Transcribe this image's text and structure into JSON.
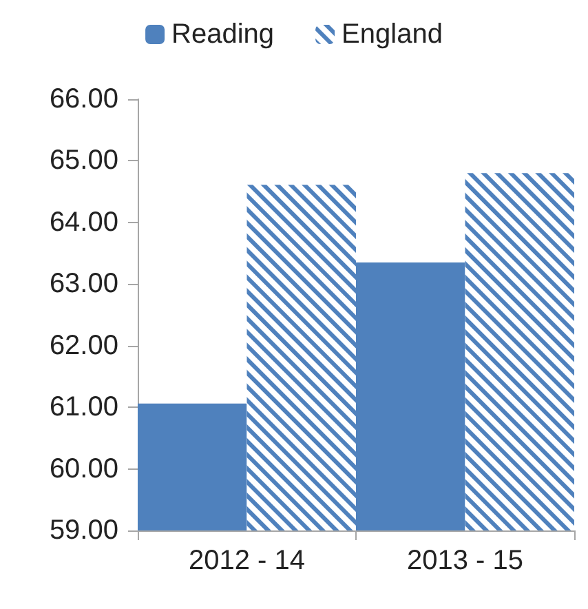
{
  "chart_data": {
    "type": "bar",
    "categories": [
      "2012 - 14",
      "2013 - 15"
    ],
    "series": [
      {
        "name": "Reading",
        "color": "#4f81bd",
        "values": [
          61.06,
          63.35
        ]
      },
      {
        "name": "England",
        "color": "#4f81bd",
        "values": [
          64.61,
          64.8
        ]
      }
    ],
    "ylim": [
      59,
      66
    ],
    "yticks": [
      {
        "value": 59,
        "label": "59.00"
      },
      {
        "value": 60,
        "label": "60.00"
      },
      {
        "value": 61,
        "label": "61.00"
      },
      {
        "value": 62,
        "label": "62.00"
      },
      {
        "value": 63,
        "label": "63.00"
      },
      {
        "value": 64,
        "label": "64.00"
      },
      {
        "value": 65,
        "label": "65.00"
      },
      {
        "value": 66,
        "label": "66.00"
      }
    ],
    "grid": false,
    "legend": "top"
  }
}
